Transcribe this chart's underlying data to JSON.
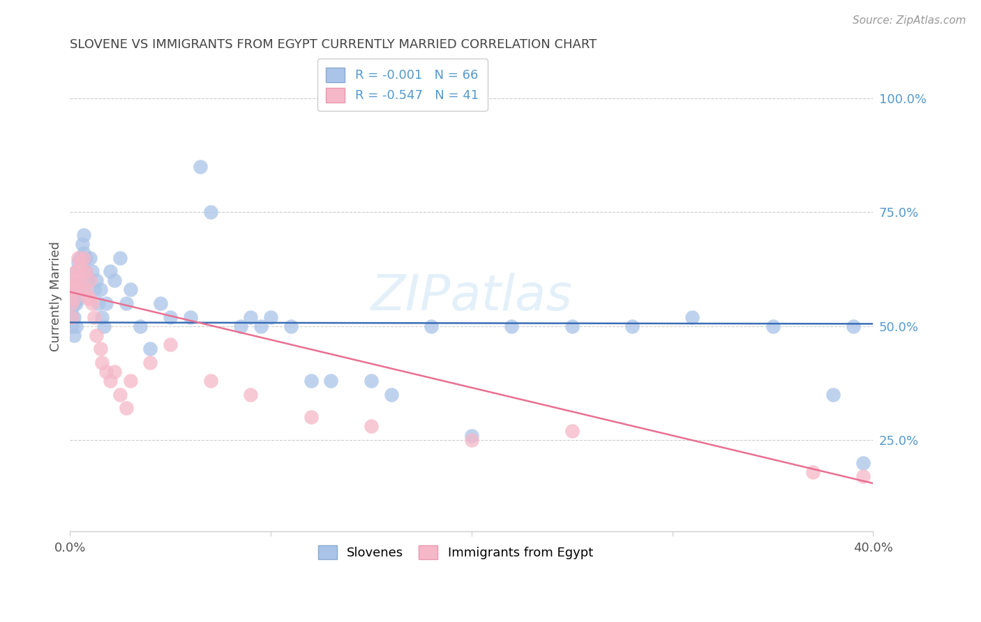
{
  "title": "SLOVENE VS IMMIGRANTS FROM EGYPT CURRENTLY MARRIED CORRELATION CHART",
  "source": "Source: ZipAtlas.com",
  "ylabel": "Currently Married",
  "ylabel_right_labels": [
    "100.0%",
    "75.0%",
    "50.0%",
    "25.0%"
  ],
  "ylabel_right_values": [
    1.0,
    0.75,
    0.5,
    0.25
  ],
  "legend_items": [
    {
      "label": "R = -0.001   N = 66",
      "color": "#a8c4e0"
    },
    {
      "label": "R = -0.547   N = 41",
      "color": "#f4a7b9"
    }
  ],
  "legend_bottom": [
    "Slovenes",
    "Immigrants from Egypt"
  ],
  "xmin": 0.0,
  "xmax": 0.4,
  "ymin": 0.05,
  "ymax": 1.08,
  "blue_line_y0": 0.508,
  "blue_line_y1": 0.505,
  "pink_line_y0": 0.575,
  "pink_line_y1": 0.155,
  "blue_scatter_x": [
    0.001,
    0.001,
    0.001,
    0.002,
    0.002,
    0.002,
    0.002,
    0.002,
    0.003,
    0.003,
    0.003,
    0.003,
    0.004,
    0.004,
    0.004,
    0.005,
    0.005,
    0.005,
    0.006,
    0.006,
    0.006,
    0.007,
    0.007,
    0.008,
    0.008,
    0.009,
    0.01,
    0.011,
    0.012,
    0.013,
    0.014,
    0.015,
    0.016,
    0.017,
    0.018,
    0.02,
    0.022,
    0.025,
    0.028,
    0.03,
    0.035,
    0.04,
    0.045,
    0.05,
    0.06,
    0.065,
    0.07,
    0.085,
    0.09,
    0.095,
    0.1,
    0.11,
    0.12,
    0.13,
    0.15,
    0.16,
    0.18,
    0.2,
    0.22,
    0.25,
    0.28,
    0.31,
    0.35,
    0.38,
    0.39,
    0.395
  ],
  "blue_scatter_y": [
    0.52,
    0.54,
    0.5,
    0.55,
    0.56,
    0.52,
    0.48,
    0.6,
    0.58,
    0.62,
    0.55,
    0.5,
    0.64,
    0.6,
    0.56,
    0.65,
    0.62,
    0.58,
    0.68,
    0.64,
    0.6,
    0.7,
    0.66,
    0.65,
    0.62,
    0.6,
    0.65,
    0.62,
    0.58,
    0.6,
    0.55,
    0.58,
    0.52,
    0.5,
    0.55,
    0.62,
    0.6,
    0.65,
    0.55,
    0.58,
    0.5,
    0.45,
    0.55,
    0.52,
    0.52,
    0.85,
    0.75,
    0.5,
    0.52,
    0.5,
    0.52,
    0.5,
    0.38,
    0.38,
    0.38,
    0.35,
    0.5,
    0.26,
    0.5,
    0.5,
    0.5,
    0.52,
    0.5,
    0.35,
    0.5,
    0.2
  ],
  "pink_scatter_x": [
    0.001,
    0.001,
    0.002,
    0.002,
    0.002,
    0.003,
    0.003,
    0.003,
    0.004,
    0.004,
    0.005,
    0.005,
    0.006,
    0.006,
    0.007,
    0.008,
    0.008,
    0.009,
    0.01,
    0.01,
    0.011,
    0.012,
    0.013,
    0.015,
    0.016,
    0.018,
    0.02,
    0.022,
    0.025,
    0.028,
    0.03,
    0.04,
    0.05,
    0.07,
    0.09,
    0.12,
    0.15,
    0.2,
    0.25,
    0.37,
    0.395
  ],
  "pink_scatter_y": [
    0.55,
    0.52,
    0.6,
    0.58,
    0.56,
    0.62,
    0.6,
    0.58,
    0.65,
    0.62,
    0.64,
    0.6,
    0.62,
    0.58,
    0.65,
    0.62,
    0.58,
    0.56,
    0.6,
    0.56,
    0.55,
    0.52,
    0.48,
    0.45,
    0.42,
    0.4,
    0.38,
    0.4,
    0.35,
    0.32,
    0.38,
    0.42,
    0.46,
    0.38,
    0.35,
    0.3,
    0.28,
    0.25,
    0.27,
    0.18,
    0.17
  ],
  "blue_line_color": "#3a6db5",
  "pink_line_color": "#e87090",
  "blue_dot_color": "#aac4e8",
  "pink_dot_color": "#f5b8c8",
  "background_color": "#ffffff",
  "grid_color": "#cccccc",
  "title_color": "#444444",
  "right_axis_color": "#5599cc"
}
